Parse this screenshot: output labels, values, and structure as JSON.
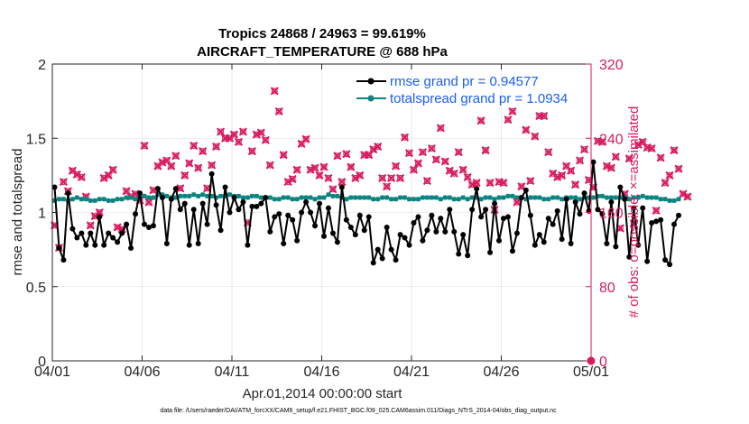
{
  "chart_data": {
    "type": "line",
    "title": "Tropics 24868 / 24963 = 99.619%",
    "subtitle": "AIRCRAFT_TEMPERATURE @ 688 hPa",
    "xlabel": "Apr.01,2014 00:00:00 start",
    "ylabel_left": "rmse and totalspread",
    "ylabel_right": "# of obs: o=possible; ×=assimilated",
    "xlim": [
      0,
      30
    ],
    "ylim_left": [
      0,
      2
    ],
    "ylim_right": [
      0,
      320
    ],
    "x_ticks": [
      0,
      5,
      10,
      15,
      20,
      25,
      30
    ],
    "x_tick_labels": [
      "04/01",
      "04/06",
      "04/11",
      "04/16",
      "04/21",
      "04/26",
      "05/01"
    ],
    "y_ticks_left": [
      "0",
      "0.5",
      "1",
      "1.5",
      "2"
    ],
    "y_ticks_right": [
      "0",
      "80",
      "160",
      "240",
      "320"
    ],
    "legend_position": "top-right",
    "series": [
      {
        "name": "rmse grand pr = 0.94577",
        "axis": "left",
        "color": "#000000",
        "x_step": 0.25,
        "values": [
          1.17,
          0.76,
          0.68,
          1.13,
          0.89,
          0.83,
          0.86,
          0.78,
          0.86,
          0.78,
          0.97,
          0.78,
          0.86,
          0.83,
          0.8,
          0.86,
          0.92,
          0.76,
          0.99,
          1.13,
          0.92,
          0.9,
          0.91,
          1.16,
          1.1,
          0.79,
          1.09,
          1.16,
          1.02,
          1.06,
          0.78,
          1.02,
          0.79,
          1.06,
          0.92,
          1.26,
          1.05,
          0.88,
          1.17,
          1.0,
          1.1,
          1.02,
          1.07,
          0.78,
          1.04,
          1.04,
          1.06,
          1.1,
          0.87,
          0.97,
          0.99,
          0.79,
          0.98,
          0.95,
          0.81,
          1.0,
          1.07,
          1.0,
          0.91,
          1.06,
          0.84,
          1.03,
          0.86,
          0.8,
          1.17,
          0.95,
          0.9,
          0.85,
          0.98,
          0.88,
          0.97,
          0.66,
          0.75,
          0.69,
          0.9,
          0.75,
          0.68,
          0.85,
          0.83,
          0.78,
          0.93,
          0.97,
          0.81,
          0.88,
          0.98,
          0.87,
          0.96,
          0.87,
          1.02,
          0.87,
          0.72,
          0.85,
          0.71,
          1.02,
          1.16,
          0.97,
          1.02,
          0.73,
          1.06,
          0.81,
          0.96,
          0.97,
          0.74,
          0.86,
          1.1,
          1.15,
          0.98,
          0.78,
          0.85,
          0.8,
          0.96,
          0.92,
          1.01,
          0.82,
          1.09,
          0.79,
          1.07,
          0.99,
          1.13,
          1.01,
          1.34,
          1.02,
          0.99,
          0.79,
          1.07,
          0.77,
          1.17,
          1.09,
          0.7,
          1.03,
          0.78,
          1.03,
          0.67,
          0.93,
          0.94,
          0.95,
          0.68,
          0.65,
          0.92,
          0.98
        ]
      },
      {
        "name": "totalspread grand pr = 1.0934",
        "axis": "left",
        "color": "#0b8582",
        "x_step": 0.25,
        "values": [
          1.08,
          1.09,
          1.09,
          1.08,
          1.09,
          1.1,
          1.09,
          1.09,
          1.08,
          1.08,
          1.09,
          1.09,
          1.08,
          1.08,
          1.09,
          1.09,
          1.1,
          1.1,
          1.09,
          1.1,
          1.11,
          1.1,
          1.1,
          1.12,
          1.12,
          1.11,
          1.1,
          1.1,
          1.11,
          1.11,
          1.11,
          1.12,
          1.11,
          1.12,
          1.11,
          1.11,
          1.1,
          1.11,
          1.11,
          1.12,
          1.11,
          1.11,
          1.1,
          1.1,
          1.11,
          1.11,
          1.1,
          1.1,
          1.1,
          1.09,
          1.09,
          1.1,
          1.1,
          1.09,
          1.09,
          1.1,
          1.1,
          1.1,
          1.09,
          1.1,
          1.1,
          1.12,
          1.11,
          1.11,
          1.1,
          1.09,
          1.1,
          1.1,
          1.1,
          1.1,
          1.1,
          1.09,
          1.09,
          1.1,
          1.1,
          1.09,
          1.09,
          1.1,
          1.1,
          1.09,
          1.09,
          1.09,
          1.1,
          1.1,
          1.1,
          1.1,
          1.09,
          1.1,
          1.1,
          1.09,
          1.09,
          1.1,
          1.09,
          1.1,
          1.1,
          1.09,
          1.1,
          1.1,
          1.09,
          1.1,
          1.1,
          1.11,
          1.11,
          1.1,
          1.1,
          1.09,
          1.1,
          1.1,
          1.1,
          1.09,
          1.09,
          1.1,
          1.1,
          1.09,
          1.1,
          1.1,
          1.1,
          1.09,
          1.1,
          1.1,
          1.1,
          1.11,
          1.11,
          1.1,
          1.1,
          1.1,
          1.1,
          1.1,
          1.09,
          1.1,
          1.1,
          1.11,
          1.1,
          1.1,
          1.1,
          1.09,
          1.09,
          1.08,
          1.08,
          1.09
        ]
      },
      {
        "name": "# of obs assimilated",
        "axis": "right",
        "color": "#d81b60",
        "marker": "x",
        "x_step": 0.25,
        "values": [
          146,
          122,
          193,
          183,
          205,
          201,
          198,
          177,
          146,
          156,
          160,
          197,
          200,
          206,
          144,
          142,
          183,
          177,
          180,
          173,
          232,
          171,
          184,
          210,
          214,
          216,
          210,
          221,
          186,
          200,
          213,
          232,
          208,
          226,
          186,
          211,
          231,
          247,
          240,
          240,
          244,
          236,
          247,
          149,
          226,
          244,
          246,
          238,
          211,
          291,
          269,
          222,
          193,
          196,
          206,
          234,
          239,
          206,
          208,
          200,
          209,
          197,
          185,
          221,
          193,
          223,
          209,
          197,
          200,
          222,
          222,
          228,
          231,
          197,
          188,
          197,
          210,
          197,
          241,
          224,
          206,
          213,
          225,
          194,
          229,
          217,
          251,
          215,
          205,
          202,
          225,
          206,
          198,
          190,
          192,
          259,
          227,
          192,
          163,
          193,
          192,
          260,
          269,
          171,
          188,
          249,
          194,
          242,
          264,
          264,
          225,
          202,
          198,
          200,
          210,
          205,
          190,
          216,
          228,
          195,
          187,
          237,
          236,
          210,
          208,
          220,
          143,
          180,
          218,
          148,
          233,
          236,
          230,
          229,
          162,
          219,
          192,
          200,
          227,
          207,
          180,
          177
        ]
      },
      {
        "name": "# of obs possible",
        "axis": "right",
        "color": "#d81b60",
        "marker": "o",
        "x_step": 0.25,
        "values": [
          146,
          122,
          193,
          183,
          205,
          201,
          198,
          177,
          146,
          156,
          160,
          197,
          200,
          206,
          144,
          142,
          183,
          177,
          180,
          173,
          232,
          171,
          184,
          210,
          214,
          216,
          210,
          221,
          186,
          200,
          213,
          232,
          208,
          226,
          186,
          211,
          231,
          247,
          240,
          240,
          244,
          236,
          247,
          149,
          226,
          244,
          246,
          238,
          211,
          291,
          269,
          222,
          193,
          196,
          206,
          234,
          239,
          206,
          208,
          200,
          209,
          197,
          185,
          221,
          193,
          223,
          209,
          197,
          200,
          222,
          222,
          228,
          231,
          197,
          188,
          197,
          210,
          197,
          241,
          224,
          206,
          213,
          225,
          194,
          229,
          217,
          251,
          215,
          205,
          202,
          225,
          206,
          198,
          190,
          192,
          259,
          227,
          192,
          163,
          193,
          192,
          260,
          269,
          171,
          188,
          249,
          194,
          242,
          264,
          264,
          225,
          202,
          198,
          200,
          210,
          205,
          190,
          216,
          228,
          195,
          187,
          237,
          236,
          210,
          208,
          220,
          143,
          180,
          218,
          148,
          233,
          236,
          230,
          229,
          162,
          219,
          192,
          200,
          227,
          207,
          180,
          177
        ]
      }
    ],
    "footer": "data file: /Users/raeder/DAI/ATM_forcXX/CAM6_setup/f.e21.FHIST_BGC.f09_025.CAM6assim.011/Diags_NTrS_2014-04/obs_diag_output.nc"
  }
}
